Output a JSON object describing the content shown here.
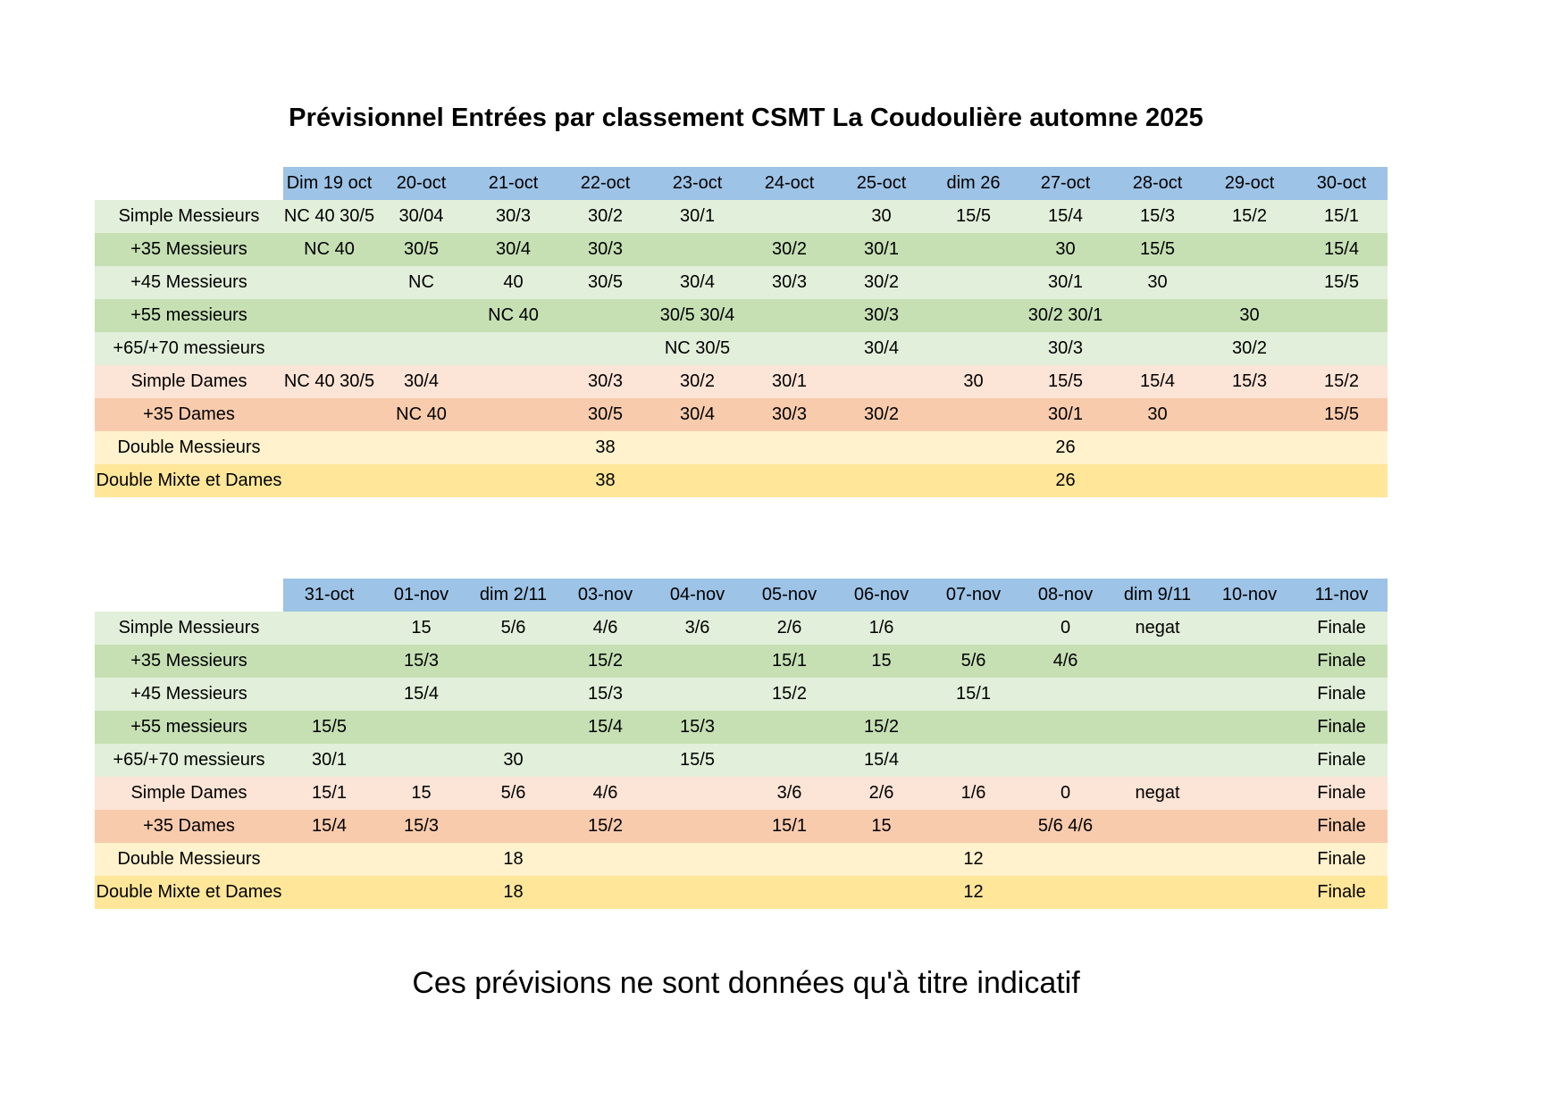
{
  "title": "Prévisionnel Entrées par classement CSMT La Coudoulière automne 2025",
  "footer": "Ces prévisions ne sont données qu'à titre indicatif",
  "colors": {
    "header_blue": "#9dc3e6",
    "green_light": "#e2efda",
    "green_mid": "#c6e0b4",
    "peach_light": "#fce4d6",
    "peach_mid": "#f8cbad",
    "yellow_light": "#fff2cc",
    "yellow_mid": "#ffe699"
  },
  "table1": {
    "dates": [
      "Dim 19 oct",
      "20-oct",
      "21-oct",
      "22-oct",
      "23-oct",
      "24-oct",
      "25-oct",
      "dim 26",
      "27-oct",
      "28-oct",
      "29-oct",
      "30-oct"
    ],
    "rows": [
      {
        "label": "Simple Messieurs",
        "cells": [
          "NC 40 30/5",
          "30/04",
          "30/3",
          "30/2",
          "30/1",
          "",
          "30",
          "15/5",
          "15/4",
          "15/3",
          "15/2",
          "15/1"
        ]
      },
      {
        "label": "+35 Messieurs",
        "cells": [
          "NC 40",
          "30/5",
          "30/4",
          "30/3",
          "",
          "30/2",
          "30/1",
          "",
          "30",
          "15/5",
          "",
          "15/4"
        ]
      },
      {
        "label": "+45 Messieurs",
        "cells": [
          "",
          "NC",
          "40",
          "30/5",
          "30/4",
          "30/3",
          "30/2",
          "",
          "30/1",
          "30",
          "",
          "15/5"
        ]
      },
      {
        "label": "+55 messieurs",
        "cells": [
          "",
          "",
          "NC 40",
          "",
          "30/5 30/4",
          "",
          "30/3",
          "",
          "30/2 30/1",
          "",
          "30",
          ""
        ]
      },
      {
        "label": "+65/+70 messieurs",
        "cells": [
          "",
          "",
          "",
          "",
          "NC 30/5",
          "",
          "30/4",
          "",
          "30/3",
          "",
          "30/2",
          ""
        ]
      },
      {
        "label": "Simple Dames",
        "cells": [
          "NC 40 30/5",
          "30/4",
          "",
          "30/3",
          "30/2",
          "30/1",
          "",
          "30",
          "15/5",
          "15/4",
          "15/3",
          "15/2"
        ]
      },
      {
        "label": "+35 Dames",
        "cells": [
          "",
          "NC 40",
          "",
          "30/5",
          "30/4",
          "30/3",
          "30/2",
          "",
          "30/1",
          "30",
          "",
          "15/5"
        ]
      },
      {
        "label": "Double Messieurs",
        "cells": [
          "",
          "",
          "",
          "38",
          "",
          "",
          "",
          "",
          "26",
          "",
          "",
          ""
        ]
      },
      {
        "label": "Double Mixte et Dames",
        "cells": [
          "",
          "",
          "",
          "38",
          "",
          "",
          "",
          "",
          "26",
          "",
          "",
          ""
        ]
      }
    ]
  },
  "table2": {
    "dates": [
      "31-oct",
      "01-nov",
      "dim 2/11",
      "03-nov",
      "04-nov",
      "05-nov",
      "06-nov",
      "07-nov",
      "08-nov",
      "dim 9/11",
      "10-nov",
      "11-nov"
    ],
    "rows": [
      {
        "label": "Simple Messieurs",
        "cells": [
          "",
          "15",
          "5/6",
          "4/6",
          "3/6",
          "2/6",
          "1/6",
          "",
          "0",
          "negat",
          "",
          "Finale"
        ]
      },
      {
        "label": "+35 Messieurs",
        "cells": [
          "",
          "15/3",
          "",
          "15/2",
          "",
          "15/1",
          "15",
          "5/6",
          "4/6",
          "",
          "",
          "Finale"
        ]
      },
      {
        "label": "+45 Messieurs",
        "cells": [
          "",
          "15/4",
          "",
          "15/3",
          "",
          "15/2",
          "",
          "15/1",
          "",
          "",
          "",
          "Finale"
        ]
      },
      {
        "label": "+55 messieurs",
        "cells": [
          "15/5",
          "",
          "",
          "15/4",
          "15/3",
          "",
          "15/2",
          "",
          "",
          "",
          "",
          "Finale"
        ]
      },
      {
        "label": "+65/+70 messieurs",
        "cells": [
          "30/1",
          "",
          "30",
          "",
          "15/5",
          "",
          "15/4",
          "",
          "",
          "",
          "",
          "Finale"
        ]
      },
      {
        "label": "Simple Dames",
        "cells": [
          "15/1",
          "15",
          "5/6",
          "4/6",
          "",
          "3/6",
          "2/6",
          "1/6",
          "0",
          "negat",
          "",
          "Finale"
        ]
      },
      {
        "label": "+35 Dames",
        "cells": [
          "15/4",
          "15/3",
          "",
          "15/2",
          "",
          "15/1",
          "15",
          "",
          "5/6 4/6",
          "",
          "",
          "Finale"
        ]
      },
      {
        "label": "Double Messieurs",
        "cells": [
          "",
          "",
          "18",
          "",
          "",
          "",
          "",
          "12",
          "",
          "",
          "",
          "Finale"
        ]
      },
      {
        "label": "Double Mixte et Dames",
        "cells": [
          "",
          "",
          "18",
          "",
          "",
          "",
          "",
          "12",
          "",
          "",
          "",
          "Finale"
        ]
      }
    ]
  }
}
